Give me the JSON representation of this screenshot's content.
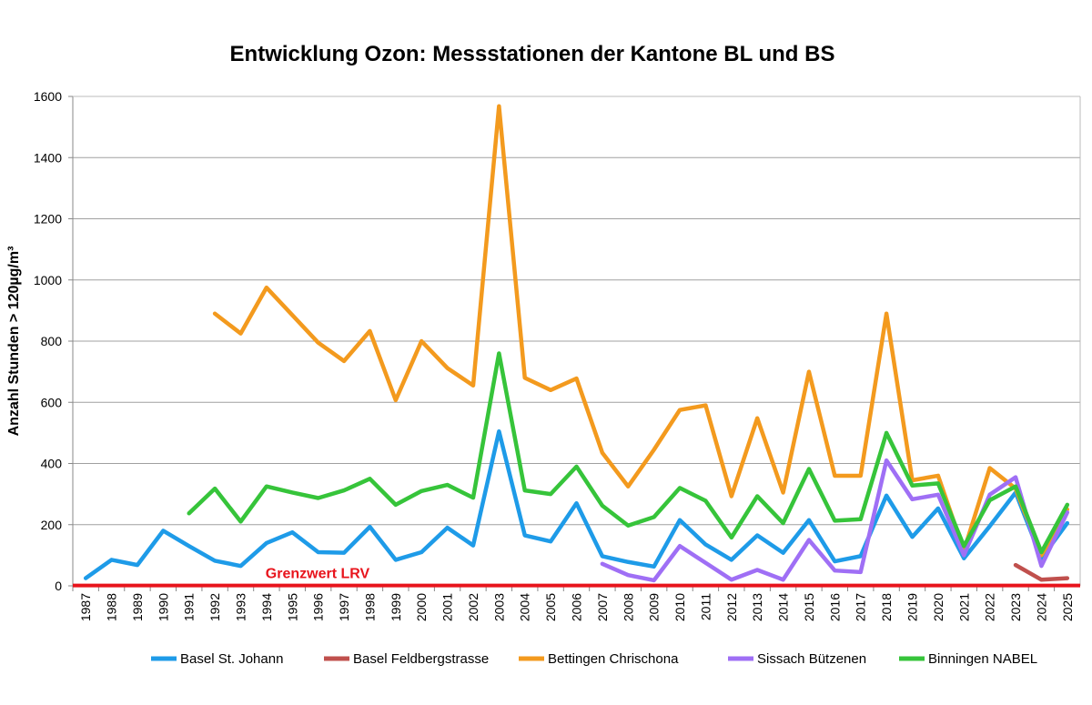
{
  "chart_data": {
    "type": "line",
    "title": "Entwicklung Ozon: Messstationen der Kantone BL und BS",
    "xlabel": "",
    "ylabel": "Anzahl Stunden  > 120µg/m³",
    "ylim": [
      0,
      1600
    ],
    "yticks": [
      0,
      200,
      400,
      600,
      800,
      1000,
      1200,
      1400,
      1600
    ],
    "grid": true,
    "legend_position": "bottom",
    "x": [
      1987,
      1988,
      1989,
      1990,
      1991,
      1992,
      1993,
      1994,
      1995,
      1996,
      1997,
      1998,
      1999,
      2000,
      2001,
      2002,
      2003,
      2004,
      2005,
      2006,
      2007,
      2008,
      2009,
      2010,
      2011,
      2012,
      2013,
      2014,
      2015,
      2016,
      2017,
      2018,
      2019,
      2020,
      2021,
      2022,
      2023,
      2024,
      2025
    ],
    "series": [
      {
        "name": "Basel St. Johann",
        "color": "#1e9be8",
        "values": [
          25,
          85,
          68,
          180,
          130,
          82,
          65,
          140,
          175,
          110,
          108,
          193,
          85,
          110,
          190,
          132,
          505,
          165,
          145,
          270,
          97,
          78,
          63,
          215,
          135,
          85,
          165,
          108,
          215,
          80,
          97,
          295,
          160,
          253,
          90,
          195,
          305,
          90,
          205
        ]
      },
      {
        "name": "Basel Feldbergstrasse",
        "color": "#c0504d",
        "values": [
          null,
          null,
          null,
          null,
          null,
          null,
          null,
          null,
          null,
          null,
          null,
          null,
          null,
          null,
          null,
          null,
          null,
          null,
          null,
          null,
          null,
          null,
          null,
          null,
          null,
          null,
          null,
          null,
          null,
          null,
          null,
          null,
          null,
          null,
          null,
          null,
          68,
          20,
          25
        ]
      },
      {
        "name": "Bettingen Chrischona",
        "color": "#f39a1e",
        "values": [
          null,
          null,
          null,
          null,
          null,
          890,
          825,
          975,
          885,
          795,
          735,
          833,
          607,
          800,
          712,
          655,
          1568,
          680,
          640,
          678,
          435,
          325,
          445,
          575,
          590,
          293,
          548,
          305,
          700,
          360,
          360,
          890,
          345,
          360,
          115,
          385,
          318,
          100,
          250
        ]
      },
      {
        "name": "Sissach Bützenen",
        "color": "#9f6ff5",
        "values": [
          null,
          null,
          null,
          null,
          null,
          null,
          null,
          null,
          null,
          null,
          null,
          null,
          null,
          null,
          null,
          null,
          null,
          null,
          null,
          null,
          72,
          35,
          18,
          130,
          75,
          20,
          52,
          20,
          150,
          50,
          45,
          410,
          283,
          298,
          100,
          298,
          355,
          65,
          240
        ]
      },
      {
        "name": "Binningen NABEL",
        "color": "#36c43a",
        "values": [
          null,
          null,
          null,
          null,
          237,
          318,
          210,
          325,
          305,
          287,
          312,
          350,
          265,
          310,
          330,
          288,
          760,
          312,
          300,
          390,
          262,
          197,
          225,
          320,
          278,
          158,
          293,
          205,
          382,
          213,
          218,
          500,
          328,
          335,
          130,
          280,
          325,
          110,
          265
        ]
      }
    ],
    "reference_line": {
      "label": "Grenzwert LRV",
      "value": 1,
      "color": "#e8141c"
    }
  }
}
